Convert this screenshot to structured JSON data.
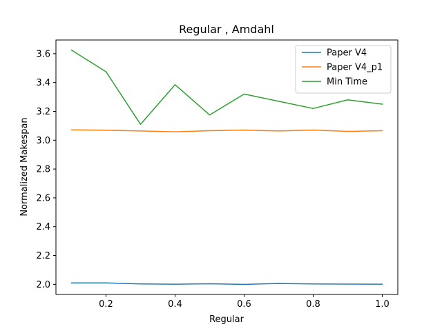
{
  "chart_data": {
    "type": "line",
    "title": "Regular , Amdahl",
    "xlabel": "Regular",
    "ylabel": "Normalized Makespan",
    "x": [
      0.1,
      0.2,
      0.3,
      0.4,
      0.5,
      0.6,
      0.7,
      0.8,
      0.9,
      1.0
    ],
    "xlim": [
      0.055,
      1.045
    ],
    "ylim": [
      1.93,
      3.695
    ],
    "xticks": [
      0.2,
      0.4,
      0.6,
      0.8,
      1.0
    ],
    "xtick_labels": [
      "0.2",
      "0.4",
      "0.6",
      "0.8",
      "1.0"
    ],
    "yticks": [
      2.0,
      2.2,
      2.4,
      2.6,
      2.8,
      3.0,
      3.2,
      3.4,
      3.6
    ],
    "ytick_labels": [
      "2.0",
      "2.2",
      "2.4",
      "2.6",
      "2.8",
      "3.0",
      "3.2",
      "3.4",
      "3.6"
    ],
    "grid": false,
    "legend_position": "top-right",
    "series": [
      {
        "name": "Paper V4",
        "color": "#1f77b4",
        "values": [
          2.01,
          2.01,
          2.003,
          2.001,
          2.004,
          2.0,
          2.006,
          2.003,
          2.002,
          2.001
        ]
      },
      {
        "name": "Paper V4_p1",
        "color": "#ff7f0e",
        "values": [
          3.072,
          3.069,
          3.064,
          3.058,
          3.066,
          3.07,
          3.064,
          3.07,
          3.061,
          3.066
        ]
      },
      {
        "name": "Min Time",
        "color": "#2ca02c",
        "values": [
          3.625,
          3.475,
          3.11,
          3.385,
          3.175,
          3.32,
          3.27,
          3.22,
          3.28,
          3.25
        ]
      }
    ]
  }
}
